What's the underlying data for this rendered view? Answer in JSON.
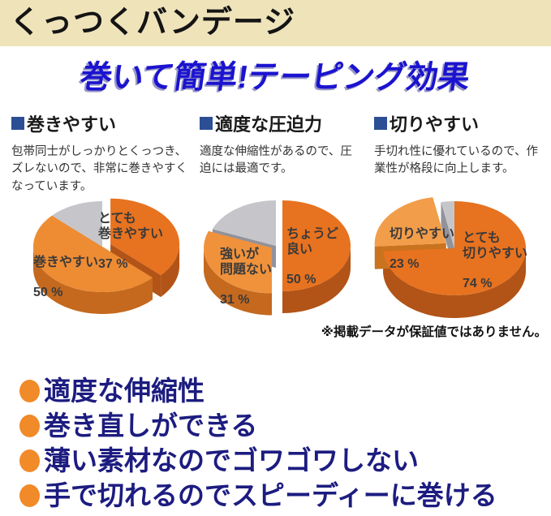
{
  "banner": {
    "title": "くっつくバンデージ"
  },
  "hero": {
    "title": "巻いて簡単!テーピング効果"
  },
  "features": [
    {
      "heading": "巻きやすい",
      "body": "包帯同士がしっかりとくっつき、ズレないので、非常に巻きやすくなっています。"
    },
    {
      "heading": "適度な圧迫力",
      "body": "適度な伸縮性があるので、圧迫には最適です。"
    },
    {
      "heading": "切りやすい",
      "body": "手切れ性に優れているので、作業性が格段に向上します。"
    }
  ],
  "disclaimer": "※掲載データが保証値ではありません。",
  "benefits": [
    "適度な伸縮性",
    "巻き直しができる",
    "薄い素材なのでゴワゴワしない",
    "手で切れるのでスピーディーに巻ける"
  ],
  "colors": {
    "banner_bg": "#efe3ba",
    "hero_blue": "#1b13d0",
    "benefit_text": "#1c1c80",
    "benefit_bullet": "#f18a28",
    "heading_square": "#2c4e94",
    "chart_label": "#3a3a3a"
  },
  "chart_data": [
    {
      "type": "pie",
      "unit": "%",
      "topic": "巻きやすい",
      "slices": [
        {
          "label": "とても\n巻きやすい",
          "value": 37,
          "pct_text": "37 %",
          "color": "#e7721f",
          "side": "#b25417",
          "explode": 11
        },
        {
          "label": "巻きやすい",
          "value": 50,
          "pct_text": "50 %",
          "color": "#ee8c33",
          "side": "#c4691e",
          "explode": 0
        },
        {
          "label": "",
          "value": 13,
          "pct_text": "",
          "color": "#c6c6ca",
          "side": "#92929b",
          "explode": 0
        }
      ]
    },
    {
      "type": "pie",
      "unit": "%",
      "topic": "適度な圧迫力",
      "slices": [
        {
          "label": "ちょうど\n良い",
          "value": 50,
          "pct_text": "50 %",
          "color": "#e7721f",
          "side": "#b25417",
          "explode": 8
        },
        {
          "label": "強いが\n問題ない",
          "value": 31,
          "pct_text": "31 %",
          "color": "#f0923c",
          "side": "#c4691e",
          "explode": 6
        },
        {
          "label": "",
          "value": 19,
          "pct_text": "",
          "color": "#c6c6ca",
          "side": "#92929b",
          "explode": 0
        }
      ]
    },
    {
      "type": "pie",
      "unit": "%",
      "topic": "切りやすい",
      "slices": [
        {
          "label": "とても\n切りやすい",
          "value": 74,
          "pct_text": "74 %",
          "color": "#e7721f",
          "side": "#b25417",
          "explode": 0
        },
        {
          "label": "切りやすい",
          "value": 23,
          "pct_text": "23 %",
          "color": "#f29d49",
          "side": "#c9731f",
          "explode": 13
        },
        {
          "label": "",
          "value": 3,
          "pct_text": "",
          "color": "#c6c6ca",
          "side": "#92929b",
          "explode": 0
        }
      ]
    }
  ]
}
